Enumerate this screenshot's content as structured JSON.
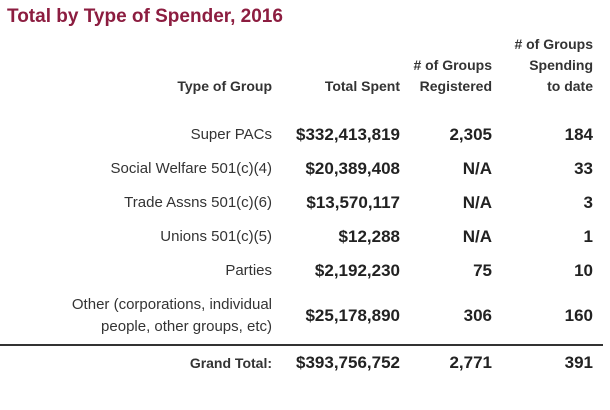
{
  "title": "Total by Type of Spender, 2016",
  "headers": {
    "group": "Type of Group",
    "spent": "Total Spent",
    "registered": "# of Groups Registered",
    "spending": "# of Groups Spending to date"
  },
  "rows": [
    {
      "group": "Super PACs",
      "spent": "$332,413,819",
      "registered": "2,305",
      "spending": "184"
    },
    {
      "group": "Social Welfare 501(c)(4)",
      "spent": "$20,389,408",
      "registered": "N/A",
      "spending": "33"
    },
    {
      "group": "Trade Assns 501(c)(6)",
      "spent": "$13,570,117",
      "registered": "N/A",
      "spending": "3"
    },
    {
      "group": "Unions 501(c)(5)",
      "spent": "$12,288",
      "registered": "N/A",
      "spending": "1"
    },
    {
      "group": "Parties",
      "spent": "$2,192,230",
      "registered": "75",
      "spending": "10"
    },
    {
      "group": "Other (corporations, individual people, other groups, etc)",
      "spent": "$25,178,890",
      "registered": "306",
      "spending": "160"
    }
  ],
  "total": {
    "label": "Grand Total:",
    "spent": "$393,756,752",
    "registered": "2,771",
    "spending": "391"
  },
  "colors": {
    "title": "#8c1d40",
    "text": "#2b2b2b",
    "rule": "#333333"
  }
}
